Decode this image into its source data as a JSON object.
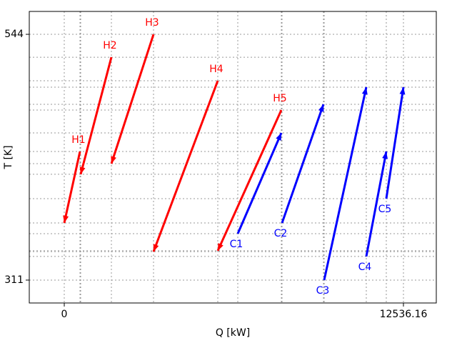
{
  "chart_data": {
    "type": "arrows",
    "x_label": "Q [kW]",
    "y_label": "T [K]",
    "xlim": [
      -1293,
      13750
    ],
    "ylim": [
      289.3,
      565.7
    ],
    "xticks": [
      0,
      12536.16
    ],
    "yticks": [
      311,
      544
    ],
    "grid": true,
    "series": [
      {
        "name": "H1",
        "color": "#ff0000",
        "x": [
          581,
          0
        ],
        "values": [
          432.9,
          365.2
        ]
      },
      {
        "name": "H2",
        "color": "#ff0000",
        "x": [
          1742,
          607
        ],
        "values": [
          522.3,
          411.3
        ]
      },
      {
        "name": "H3",
        "color": "#ff0000",
        "x": [
          3299,
          1742
        ],
        "values": [
          544,
          421.4
        ]
      },
      {
        "name": "H4",
        "color": "#ff0000",
        "x": [
          5674,
          3299
        ],
        "values": [
          500,
          338
        ]
      },
      {
        "name": "H5",
        "color": "#ff0000",
        "x": [
          8023,
          5674
        ],
        "values": [
          472.2,
          338.8
        ]
      },
      {
        "name": "C1",
        "color": "#0000ff",
        "x": [
          6413,
          8023
        ],
        "values": [
          355,
          450.5
        ]
      },
      {
        "name": "C2",
        "color": "#0000ff",
        "x": [
          8049,
          9580
        ],
        "values": [
          365.2,
          477.6
        ]
      },
      {
        "name": "C3",
        "color": "#0000ff",
        "x": [
          9606,
          11163
        ],
        "values": [
          311,
          493.9
        ]
      },
      {
        "name": "C4",
        "color": "#0000ff",
        "x": [
          11163,
          11902
        ],
        "values": [
          333.4,
          432.9
        ]
      },
      {
        "name": "C5",
        "color": "#0000ff",
        "x": [
          11902,
          12536.16
        ],
        "values": [
          388.2,
          493.9
        ]
      }
    ]
  }
}
